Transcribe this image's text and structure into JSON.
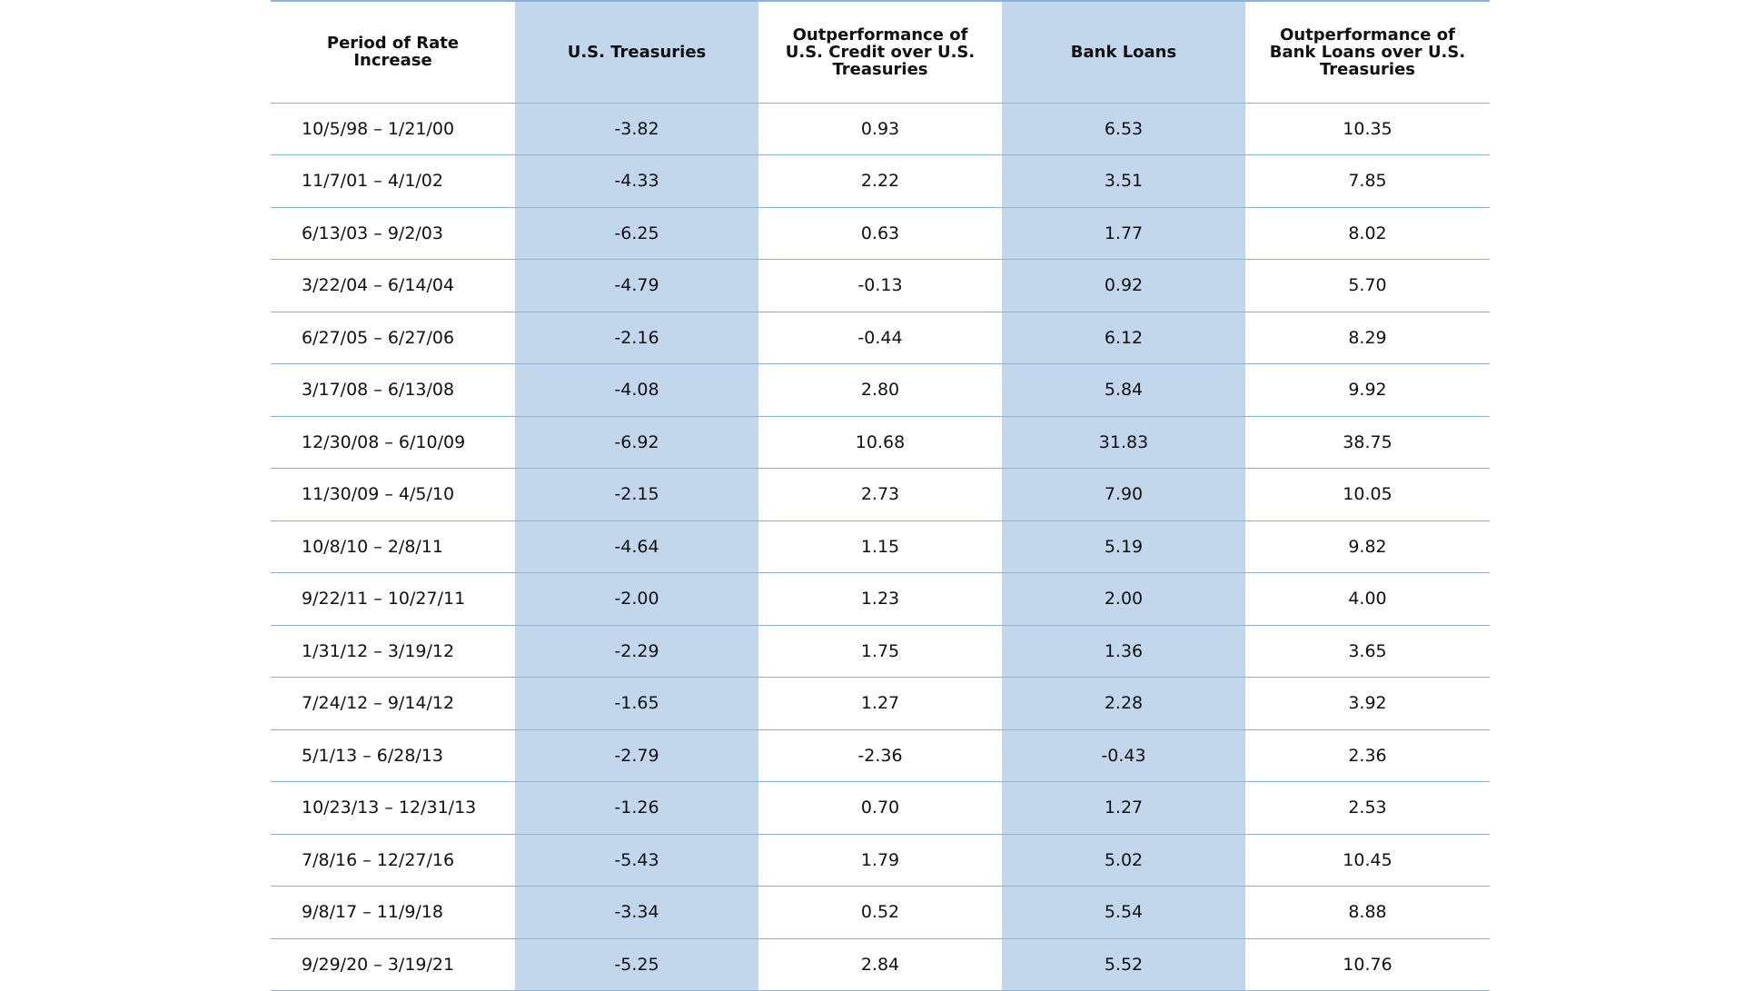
{
  "colors": {
    "shaded_column": "#c3d7ec",
    "rule_line": "#8eb0d3"
  },
  "chart_data": {
    "type": "table",
    "columns": [
      "Period of Rate Increase",
      "U.S. Treasuries",
      "Outperformance of U.S. Credit over U.S. Treasuries",
      "Bank Loans",
      "Outperformance of Bank Loans over U.S. Treasuries"
    ],
    "rows": [
      [
        "10/5/98 – 1/21/00",
        "-3.82",
        "0.93",
        "6.53",
        "10.35"
      ],
      [
        "11/7/01 – 4/1/02",
        "-4.33",
        "2.22",
        "3.51",
        "7.85"
      ],
      [
        "6/13/03 – 9/2/03",
        "-6.25",
        "0.63",
        "1.77",
        "8.02"
      ],
      [
        "3/22/04 – 6/14/04",
        "-4.79",
        "-0.13",
        "0.92",
        "5.70"
      ],
      [
        "6/27/05 – 6/27/06",
        "-2.16",
        "-0.44",
        "6.12",
        "8.29"
      ],
      [
        "3/17/08 – 6/13/08",
        "-4.08",
        "2.80",
        "5.84",
        "9.92"
      ],
      [
        "12/30/08 – 6/10/09",
        "-6.92",
        "10.68",
        "31.83",
        "38.75"
      ],
      [
        "11/30/09 – 4/5/10",
        "-2.15",
        "2.73",
        "7.90",
        "10.05"
      ],
      [
        "10/8/10 – 2/8/11",
        "-4.64",
        "1.15",
        "5.19",
        "9.82"
      ],
      [
        "9/22/11 – 10/27/11",
        "-2.00",
        "1.23",
        "2.00",
        "4.00"
      ],
      [
        "1/31/12 – 3/19/12",
        "-2.29",
        "1.75",
        "1.36",
        "3.65"
      ],
      [
        "7/24/12 – 9/14/12",
        "-1.65",
        "1.27",
        "2.28",
        "3.92"
      ],
      [
        "5/1/13 – 6/28/13",
        "-2.79",
        "-2.36",
        "-0.43",
        "2.36"
      ],
      [
        "10/23/13 – 12/31/13",
        "-1.26",
        "0.70",
        "1.27",
        "2.53"
      ],
      [
        "7/8/16 – 12/27/16",
        "-5.43",
        "1.79",
        "5.02",
        "10.45"
      ],
      [
        "9/8/17 – 11/9/18",
        "-3.34",
        "0.52",
        "5.54",
        "8.88"
      ],
      [
        "9/29/20 – 3/19/21",
        "-5.25",
        "2.84",
        "5.52",
        "10.76"
      ]
    ]
  }
}
